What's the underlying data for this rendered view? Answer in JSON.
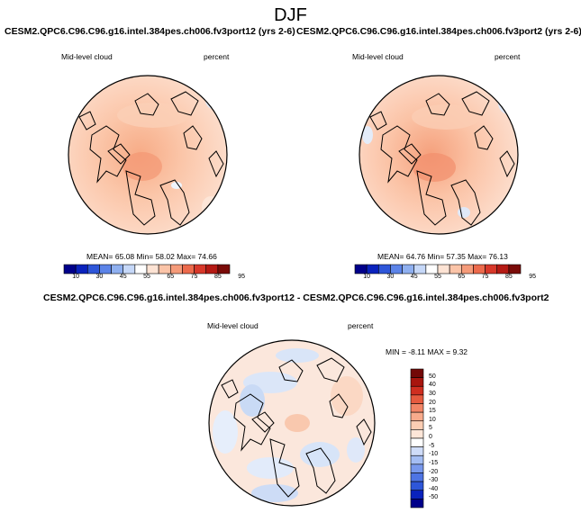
{
  "figure": {
    "title": "DJF"
  },
  "colors": {
    "horizontal_scale": [
      "#00008a",
      "#0a22bd",
      "#2e56d9",
      "#5c84e8",
      "#8fb0f0",
      "#c6d8f8",
      "#ffffff",
      "#fde3d4",
      "#fbc4a8",
      "#f59b7a",
      "#ec6a4c",
      "#d8382a",
      "#b51a14",
      "#7a0b08"
    ],
    "vertical_scale": [
      "#00008a",
      "#0a22bd",
      "#2e56d9",
      "#4e74e4",
      "#7898ec",
      "#a4bdf3",
      "#cfdcf8",
      "#ffffff",
      "#fde6d8",
      "#fbcdb3",
      "#f8ab8c",
      "#f28566",
      "#e65a3f",
      "#cf2e20",
      "#a8150e",
      "#730807"
    ]
  },
  "chart_data": [
    {
      "type": "heatmap",
      "title": "CESM2.QPC6.C96.C96.g16.intel.384pes.ch006.fv3port12 (yrs 2-6)",
      "left_label": "Mid-level cloud",
      "right_label": "percent",
      "projection": "north polar stereographic",
      "stats": {
        "text": "MEAN= 65.08  Min= 58.02  Max= 74.66",
        "mean": 65.08,
        "min": 58.02,
        "max": 74.66
      },
      "colorbar_ticks": [
        "10",
        "30",
        "45",
        "55",
        "65",
        "75",
        "85",
        "95"
      ]
    },
    {
      "type": "heatmap",
      "title": "CESM2.QPC6.C96.C96.g16.intel.384pes.ch006.fv3port2 (yrs 2-6)",
      "left_label": "Mid-level cloud",
      "right_label": "percent",
      "projection": "north polar stereographic",
      "stats": {
        "text": "MEAN= 64.76  Min= 57.35  Max= 76.13",
        "mean": 64.76,
        "min": 57.35,
        "max": 76.13
      },
      "colorbar_ticks": [
        "10",
        "30",
        "45",
        "55",
        "65",
        "75",
        "85",
        "95"
      ]
    },
    {
      "type": "heatmap",
      "title": "CESM2.QPC6.C96.C96.g16.intel.384pes.ch006.fv3port12 - CESM2.QPC6.C96.C96.g16.intel.384pes.ch006.fv3port2",
      "left_label": "Mid-level cloud",
      "right_label": "percent",
      "projection": "north polar stereographic",
      "stats": {
        "text": "MIN = -8.11 MAX =  9.32",
        "min": -8.11,
        "max": 9.32
      },
      "colorbar_ticks": [
        "50",
        "40",
        "30",
        "20",
        "15",
        "10",
        "5",
        "0",
        "-5",
        "-10",
        "-15",
        "-20",
        "-30",
        "-40",
        "-50"
      ]
    }
  ]
}
